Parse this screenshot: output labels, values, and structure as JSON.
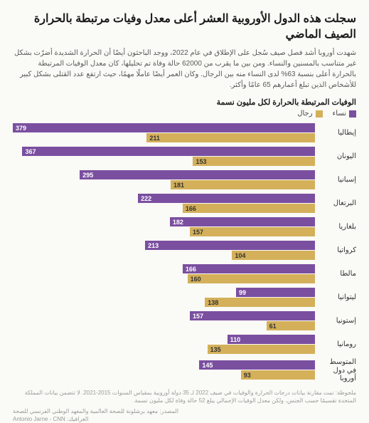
{
  "title": "سجلت هذه الدول الأوروبية العشر أعلى معدل وفيات مرتبطة بالحرارة الصيف الماضي",
  "subtitle": "شهدت أوروبا أشد فصل صيف سُجل على الإطلاق في عام 2022، ووجد الباحثون أيضًا أن الحرارة الشديدة أضرّت بشكل غير متناسب بالمسنين والنساء. ومن بين ما يقرب من 62000 حالة وفاة تم تحليلها، كان معدل الوفيات المرتبطة بالحرارة أعلى بنسبة 63% لدى النساء منه بين الرجال. وكان العمر أيضًا عاملًا مهمًا، حيث ارتفع عدد القتلى بشكل كبير للأشخاص الذين تبلغ أعمارهم 65 عامًا وأكثر.",
  "chart_title": "الوفيات المرتبطة بالحرارة لكل مليون نسمة",
  "legend": {
    "women": "نساء",
    "men": "رجال"
  },
  "colors": {
    "women": "#7a4fa0",
    "men": "#d4b05a",
    "bg": "#fafaf6",
    "text": "#1a1a1a",
    "muted": "#9a9a9a"
  },
  "max_value": 379,
  "rows": [
    {
      "label": "إيطاليا",
      "women": 379,
      "men": 211
    },
    {
      "label": "اليونان",
      "women": 367,
      "men": 153
    },
    {
      "label": "إسبانيا",
      "women": 295,
      "men": 181
    },
    {
      "label": "البرتغال",
      "women": 222,
      "men": 166
    },
    {
      "label": "بلغاريا",
      "women": 182,
      "men": 157
    },
    {
      "label": "كرواتيا",
      "women": 213,
      "men": 104
    },
    {
      "label": "مالطا",
      "women": 166,
      "men": 160
    },
    {
      "label": "ليتوانيا",
      "women": 99,
      "men": 138
    },
    {
      "label": "إستونيا",
      "women": 157,
      "men": 61
    },
    {
      "label": "رومانيا",
      "women": 110,
      "men": 135
    },
    {
      "label": "المتوسط في دول أوروبا",
      "women": 145,
      "men": 93
    }
  ],
  "footnote": "ملحوظة: تمت مقارنة بيانات درجات الحرارة والوفيات في صيف 2022 لـ 35 دولة أوروبية بمقياس السنوات 2015-2021. لا تتضمن بيانات المملكة المتحدة تقسيمًا حسب الجنس، ولكن معدل الوفيات الإجمالي يبلغ 52 حالة وفاة لكل مليون نسمة.",
  "credits_line1": "المصدر: معهد برشلونة للصحة العالمية والمعهد الوطني الفرنسي للصحة",
  "credits_line2": "الغرافيك: Antonio Jarne - CNN"
}
